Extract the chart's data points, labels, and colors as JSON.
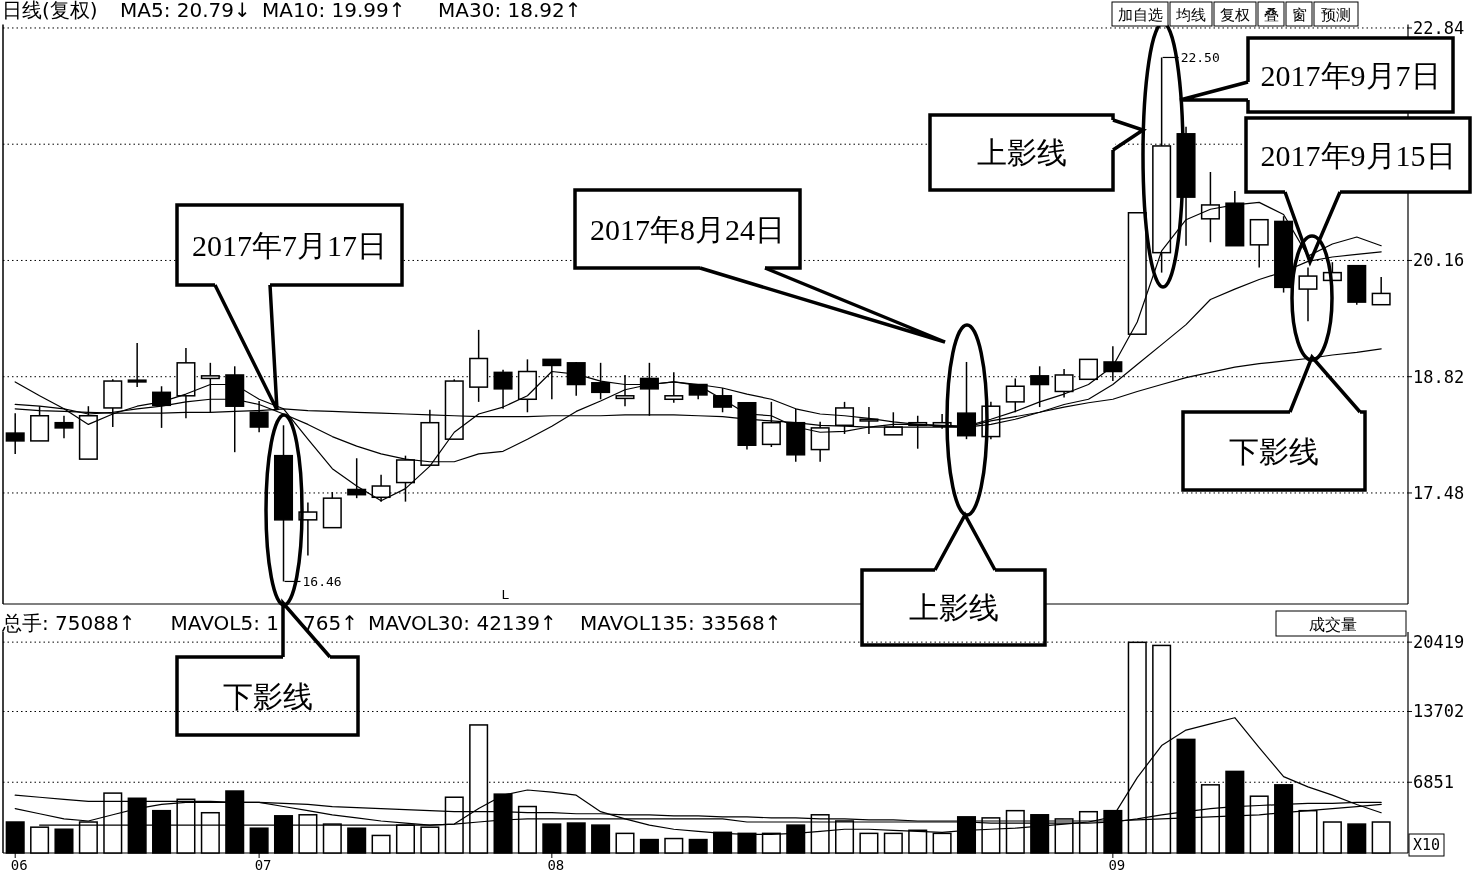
{
  "chart_data": [
    {
      "type": "candlestick",
      "categories": [
        null,
        null,
        null,
        null,
        null,
        null,
        null,
        null,
        null,
        null,
        null,
        null,
        null,
        null,
        null,
        null,
        null,
        null,
        null,
        null,
        null,
        null,
        null,
        null,
        null,
        null,
        null,
        null,
        null,
        null,
        null,
        null,
        null,
        null,
        null,
        null,
        null,
        null,
        null,
        null,
        null,
        null,
        null,
        null,
        null,
        null,
        null,
        null,
        null,
        null,
        null,
        null,
        null,
        null,
        null,
        null,
        null
      ],
      "ohlc": [
        [
          18.17,
          18.4,
          17.93,
          18.08
        ],
        [
          18.08,
          18.48,
          18.08,
          18.37
        ],
        [
          18.29,
          18.37,
          18.11,
          18.23
        ],
        [
          17.87,
          18.48,
          17.87,
          18.37
        ],
        [
          18.46,
          18.79,
          18.24,
          18.77
        ],
        [
          18.78,
          19.21,
          18.7,
          18.76
        ],
        [
          18.64,
          18.71,
          18.23,
          18.49
        ],
        [
          18.6,
          19.15,
          18.34,
          18.98
        ],
        [
          18.8,
          18.98,
          18.41,
          18.83
        ],
        [
          18.84,
          18.94,
          17.95,
          18.48
        ],
        [
          18.41,
          18.54,
          18.18,
          18.24
        ],
        [
          17.91,
          18.26,
          16.46,
          17.17
        ],
        [
          17.17,
          17.37,
          16.76,
          17.26
        ],
        [
          17.08,
          17.49,
          17.08,
          17.42
        ],
        [
          17.52,
          17.88,
          17.42,
          17.46
        ],
        [
          17.43,
          17.69,
          17.38,
          17.56
        ],
        [
          17.6,
          17.91,
          17.38,
          17.86
        ],
        [
          17.8,
          18.44,
          17.8,
          18.29
        ],
        [
          18.1,
          18.79,
          18.1,
          18.77
        ],
        [
          18.7,
          19.36,
          18.53,
          19.03
        ],
        [
          18.87,
          18.9,
          18.45,
          18.68
        ],
        [
          18.56,
          19.02,
          18.41,
          18.88
        ],
        [
          19.02,
          19.02,
          18.56,
          18.95
        ],
        [
          18.98,
          18.99,
          18.6,
          18.73
        ],
        [
          18.75,
          18.98,
          18.56,
          18.64
        ],
        [
          18.57,
          18.84,
          18.48,
          18.6
        ],
        [
          18.8,
          18.98,
          18.37,
          18.68
        ],
        [
          18.56,
          18.87,
          18.52,
          18.6
        ],
        [
          18.73,
          18.73,
          18.56,
          18.61
        ],
        [
          18.6,
          18.69,
          18.41,
          18.47
        ],
        [
          18.52,
          18.52,
          17.98,
          18.03
        ],
        [
          18.04,
          18.53,
          18.01,
          18.29
        ],
        [
          18.29,
          18.45,
          17.84,
          17.92
        ],
        [
          17.98,
          18.3,
          17.84,
          18.23
        ],
        [
          18.26,
          18.53,
          18.16,
          18.46
        ],
        [
          18.31,
          18.47,
          18.16,
          18.33
        ],
        [
          18.15,
          18.41,
          18.15,
          18.24
        ],
        [
          18.26,
          18.37,
          17.99,
          18.29
        ],
        [
          18.25,
          18.39,
          18.22,
          18.29
        ],
        [
          18.4,
          18.99,
          18.1,
          18.14
        ],
        [
          18.13,
          18.53,
          18.1,
          18.48
        ],
        [
          18.53,
          18.8,
          18.41,
          18.71
        ],
        [
          18.83,
          18.94,
          18.47,
          18.73
        ],
        [
          18.65,
          18.91,
          18.58,
          18.84
        ],
        [
          18.79,
          19.02,
          18.79,
          19.02
        ],
        [
          18.99,
          19.17,
          18.77,
          18.88
        ],
        [
          19.31,
          20.71,
          19.31,
          20.71
        ],
        [
          20.25,
          22.5,
          20.02,
          21.48
        ],
        [
          21.62,
          21.7,
          20.33,
          20.89
        ],
        [
          20.64,
          21.18,
          20.37,
          20.8
        ],
        [
          20.82,
          20.96,
          20.33,
          20.33
        ],
        [
          20.34,
          20.63,
          20.08,
          20.63
        ],
        [
          20.61,
          20.67,
          19.79,
          19.85
        ],
        [
          19.83,
          20.08,
          19.46,
          19.98
        ],
        [
          19.93,
          20.14,
          19.93,
          20.02
        ],
        [
          20.1,
          20.1,
          19.65,
          19.68
        ],
        [
          19.65,
          19.97,
          19.65,
          19.78
        ]
      ],
      "series": [
        {
          "type": "line",
          "color": "#000000",
          "values": [
            18.76,
            18.6,
            18.45,
            18.27,
            18.39,
            18.48,
            18.53,
            18.62,
            18.73,
            18.73,
            18.56,
            18.45,
            18.1,
            17.76,
            17.56,
            17.39,
            17.53,
            17.79,
            18.18,
            18.39,
            18.47,
            18.6,
            18.88,
            18.85,
            18.77,
            18.73,
            18.73,
            18.76,
            18.72,
            18.56,
            18.39,
            18.37,
            18.24,
            18.18,
            18.19,
            18.24,
            18.27,
            18.27,
            18.26,
            18.25,
            18.33,
            18.42,
            18.53,
            18.62,
            18.73,
            18.94,
            19.45,
            20.27,
            20.63,
            20.75,
            20.8,
            20.83,
            20.69,
            20.21,
            20.35,
            20.43,
            20.33
          ]
        },
        {
          "type": "line",
          "color": "#000000",
          "values": [
            18.5,
            18.48,
            18.45,
            18.39,
            18.41,
            18.45,
            18.48,
            18.53,
            18.56,
            18.56,
            18.5,
            18.39,
            18.27,
            18.13,
            18.02,
            17.93,
            17.87,
            17.84,
            17.84,
            17.93,
            17.96,
            18.1,
            18.25,
            18.42,
            18.54,
            18.67,
            18.73,
            18.76,
            18.73,
            18.69,
            18.62,
            18.56,
            18.45,
            18.39,
            18.37,
            18.34,
            18.3,
            18.27,
            18.25,
            18.24,
            18.27,
            18.33,
            18.41,
            18.5,
            18.56,
            18.73,
            18.96,
            19.19,
            19.42,
            19.71,
            19.83,
            19.94,
            20.03,
            20.15,
            20.2,
            20.23,
            20.26
          ]
        },
        {
          "type": "line",
          "color": "#000000",
          "values": [
            18.45,
            18.43,
            18.42,
            18.41,
            18.4,
            18.4,
            18.4,
            18.41,
            18.41,
            18.42,
            18.43,
            18.45,
            18.43,
            18.42,
            18.41,
            18.4,
            18.39,
            18.38,
            18.37,
            18.36,
            18.36,
            18.36,
            18.37,
            18.37,
            18.37,
            18.38,
            18.38,
            18.38,
            18.37,
            18.36,
            18.33,
            18.31,
            18.29,
            18.26,
            18.25,
            18.24,
            18.24,
            18.24,
            18.24,
            18.24,
            18.31,
            18.36,
            18.41,
            18.47,
            18.52,
            18.56,
            18.65,
            18.73,
            18.81,
            18.87,
            18.93,
            18.97,
            19.0,
            19.03,
            19.07,
            19.1,
            19.14
          ]
        }
      ],
      "ylim": [
        16.2,
        22.88
      ],
      "yticks": [
        17.48,
        18.82,
        20.16,
        {
          "value": 21.5,
          "label": null
        },
        22.84
      ],
      "grid": "y",
      "tick_labels": "y",
      "annotations": [
        "日线(复权)",
        "MA5: 20.79↓",
        "MA10: 19.99↑",
        "MA30: 18.92↑",
        "加自选",
        "均线",
        "复权",
        "叠",
        "窗",
        "预测",
        "L",
        "22.50",
        "16.46",
        "2017年7月17日",
        "下影线",
        "2017年8月24日",
        "上影线",
        "2017年9月7日",
        "上影线",
        "2017年9月15日",
        "下影线"
      ]
    },
    {
      "type": "bar",
      "categories": [
        "06",
        null,
        null,
        null,
        null,
        null,
        null,
        null,
        null,
        null,
        "07",
        null,
        null,
        null,
        null,
        null,
        null,
        null,
        null,
        null,
        null,
        null,
        "08",
        null,
        null,
        null,
        null,
        null,
        null,
        null,
        null,
        null,
        null,
        null,
        null,
        null,
        null,
        null,
        null,
        null,
        null,
        null,
        null,
        null,
        null,
        "09",
        null,
        null,
        null,
        null,
        null,
        null,
        null,
        null,
        null,
        null,
        null
      ],
      "values": [
        3000,
        2500,
        2300,
        3000,
        5800,
        5300,
        4100,
        5200,
        3900,
        6000,
        2400,
        3600,
        3700,
        2800,
        2400,
        1700,
        2700,
        2500,
        5400,
        12400,
        5700,
        4500,
        2800,
        2900,
        2700,
        1900,
        1300,
        1400,
        1300,
        2000,
        1900,
        1900,
        2700,
        3700,
        3100,
        1900,
        1900,
        2200,
        1900,
        3500,
        3400,
        4100,
        3700,
        3300,
        4000,
        4100,
        20400,
        20100,
        11000,
        6600,
        7900,
        5500,
        6600,
        4100,
        3000,
        2800,
        3000
      ],
      "colors": [
        "#000000",
        "#ffffff",
        "#000000",
        "#ffffff",
        "#ffffff",
        "#000000",
        "#000000",
        "#ffffff",
        "#ffffff",
        "#000000",
        "#000000",
        "#000000",
        "#ffffff",
        "#ffffff",
        "#000000",
        "#ffffff",
        "#ffffff",
        "#ffffff",
        "#ffffff",
        "#ffffff",
        "#000000",
        "#ffffff",
        "#000000",
        "#000000",
        "#000000",
        "#ffffff",
        "#000000",
        "#ffffff",
        "#000000",
        "#000000",
        "#000000",
        "#ffffff",
        "#000000",
        "#ffffff",
        "#ffffff",
        "#ffffff",
        "#ffffff",
        "#ffffff",
        "#ffffff",
        "#000000",
        "#ffffff",
        "#ffffff",
        "#000000",
        "#ffffff",
        "#ffffff",
        "#000000",
        "#ffffff",
        "#ffffff",
        "#000000",
        "#ffffff",
        "#000000",
        "#ffffff",
        "#000000",
        "#ffffff",
        "#ffffff",
        "#000000",
        "#ffffff"
      ],
      "series": [
        {
          "type": "line",
          "color": "#000000",
          "values": [
            4300,
            3800,
            3300,
            3100,
            3700,
            4300,
            4700,
            4900,
            4900,
            4900,
            4900,
            4500,
            4100,
            3700,
            3400,
            3100,
            2900,
            2700,
            2800,
            4300,
            5600,
            6100,
            5900,
            5600,
            4000,
            3300,
            2700,
            2300,
            2100,
            1900,
            1800,
            1800,
            1900,
            2100,
            2300,
            2300,
            2200,
            2100,
            2000,
            2200,
            2300,
            2400,
            2600,
            2800,
            3000,
            3500,
            7300,
            10400,
            11900,
            12500,
            13100,
            10200,
            7400,
            6400,
            5600,
            4700,
            3900
          ]
        },
        {
          "type": "line",
          "color": "#000000",
          "values": [
            null,
            2700,
            2700,
            2700,
            2700,
            2700,
            2700,
            2700,
            2700,
            2700,
            2700,
            2700,
            2700,
            2700,
            2700,
            2700,
            2700,
            2700,
            2800,
            3000,
            3200,
            3300,
            3300,
            3300,
            3300,
            3300,
            3300,
            3300,
            3300,
            3300,
            3000,
            3000,
            3000,
            3000,
            3000,
            3000,
            3000,
            3000,
            3000,
            3000,
            2900,
            2900,
            2900,
            2900,
            2900,
            3000,
            3300,
            3700,
            4000,
            4300,
            4500,
            4600,
            4700,
            4800,
            4800,
            4900,
            4900
          ]
        },
        {
          "type": "line",
          "color": "#000000",
          "values": [
            5600,
            5400,
            5200,
            5000,
            5000,
            5000,
            5000,
            5000,
            5000,
            4900,
            4900,
            4800,
            4700,
            4500,
            4400,
            4300,
            4200,
            4100,
            4000,
            4000,
            4000,
            3900,
            3900,
            3800,
            3800,
            3700,
            3700,
            3600,
            3600,
            3500,
            3500,
            3400,
            3400,
            3300,
            3300,
            3200,
            3200,
            3100,
            3100,
            3100,
            3100,
            3100,
            3100,
            3100,
            3100,
            3100,
            3200,
            3300,
            3400,
            3500,
            3600,
            3700,
            3900,
            4100,
            4300,
            4500,
            4700
          ]
        }
      ],
      "ylim": [
        0,
        21400
      ],
      "yticks": [
        6851,
        13702,
        20419
      ],
      "grid": "y",
      "annotations": [
        "总手: 75088↑",
        "MAVOL5: 1",
        "765↑",
        "MAVOL30: 42139↑",
        "MAVOL135: 33568↑",
        "成交量",
        "X10"
      ]
    }
  ]
}
